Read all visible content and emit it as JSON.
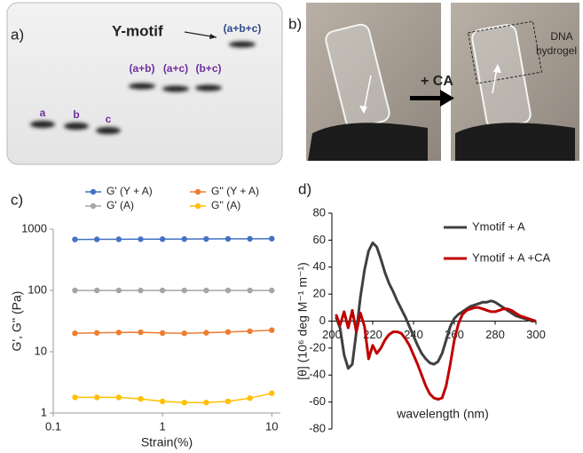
{
  "panel_a": {
    "label": "a)",
    "title": "Y-motif",
    "lanes": [
      "a",
      "b",
      "c",
      "(a+b)",
      "(a+c)",
      "(b+c)",
      "(a+b+c)"
    ]
  },
  "panel_b": {
    "label": "b)",
    "arrow_label": "+ CA",
    "annotation": [
      "DNA",
      "hydrogel"
    ]
  },
  "chart_data": [
    {
      "type": "line",
      "panel_label": "c)",
      "x_label": "Strain(%)",
      "y_label": "G', G'' (Pa)",
      "x": [
        0.158,
        0.251,
        0.398,
        0.631,
        1,
        1.585,
        2.512,
        3.981,
        6.31,
        10
      ],
      "series": [
        {
          "name": "G' (Y + A)",
          "color": "#4472c4",
          "values": [
            680,
            682,
            684,
            686,
            688,
            690,
            692,
            694,
            696,
            700
          ]
        },
        {
          "name": "G'' (Y + A)",
          "color": "#ed7d31",
          "values": [
            20,
            20.3,
            20.6,
            20.8,
            20.2,
            20,
            20.4,
            21,
            21.6,
            22.5
          ]
        },
        {
          "name": "G' (A)",
          "color": "#a5a5a5",
          "values": [
            100,
            100,
            100,
            100,
            100,
            100,
            100,
            100,
            100,
            100
          ]
        },
        {
          "name": "G'' (A)",
          "color": "#ffc000",
          "values": [
            1.8,
            1.8,
            1.8,
            1.7,
            1.55,
            1.48,
            1.48,
            1.55,
            1.75,
            2.1
          ]
        }
      ],
      "xlim": [
        0.1,
        12
      ],
      "xticks": [
        0.1,
        1,
        10
      ],
      "ylim": [
        1,
        1000
      ],
      "yticks": [
        1,
        10,
        100,
        1000
      ],
      "log_x": true,
      "log_y": true,
      "markers": true,
      "legend": "top"
    },
    {
      "type": "line",
      "panel_label": "d)",
      "x_label": "wavelength (nm)",
      "y_label": "[θ] (10⁶ deg M⁻¹ m⁻¹)",
      "x": [
        202,
        204,
        206,
        208,
        210,
        212,
        214,
        216,
        218,
        220,
        222,
        224,
        226,
        228,
        230,
        232,
        234,
        236,
        238,
        240,
        242,
        244,
        246,
        248,
        250,
        252,
        254,
        256,
        258,
        260,
        262,
        264,
        266,
        268,
        270,
        272,
        274,
        276,
        278,
        280,
        282,
        284,
        286,
        288,
        290,
        292,
        294,
        296,
        298,
        300
      ],
      "series": [
        {
          "name": "Ymotif + A",
          "color": "#404040",
          "values": [
            3,
            -5,
            -25,
            -35,
            -32,
            -8,
            18,
            38,
            52,
            58,
            55,
            46,
            36,
            28,
            22,
            15,
            9,
            3,
            -4,
            -11,
            -18,
            -24,
            -28,
            -31,
            -32,
            -30,
            -24,
            -14,
            -4,
            2,
            5,
            7,
            9,
            11,
            12,
            13,
            14,
            14,
            15,
            14,
            12,
            10,
            8,
            6,
            4,
            3,
            2,
            1,
            0,
            0
          ]
        },
        {
          "name": "Ymotif + A +CA",
          "color": "#c00000",
          "values": [
            5,
            -3,
            7,
            -5,
            8,
            -8,
            6,
            -4,
            -28,
            -18,
            -24,
            -20,
            -14,
            -10,
            -8,
            -8,
            -9,
            -13,
            -18,
            -25,
            -32,
            -40,
            -48,
            -54,
            -57,
            -58,
            -57,
            -48,
            -32,
            -14,
            -2,
            5,
            8,
            9,
            10,
            10,
            9,
            8,
            7,
            7,
            8,
            9,
            9,
            8,
            6,
            4,
            3,
            2,
            1,
            0
          ]
        }
      ],
      "xlim": [
        200,
        300
      ],
      "xticks": [
        200,
        220,
        240,
        260,
        280,
        300
      ],
      "ylim": [
        -80,
        80
      ],
      "yticks": [
        -80,
        -60,
        -40,
        -20,
        0,
        20,
        40,
        60,
        80
      ],
      "log_x": false,
      "log_y": false,
      "markers": false,
      "legend": "upper right"
    }
  ]
}
